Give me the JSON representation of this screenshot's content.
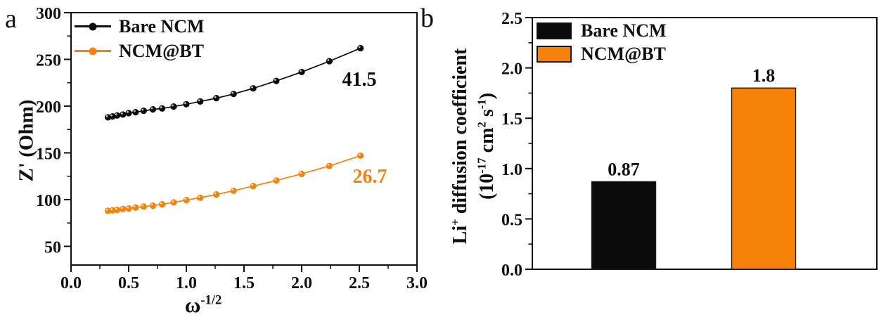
{
  "figure": {
    "panel_a_letter": "a",
    "panel_b_letter": "b"
  },
  "chart_data": [
    {
      "type": "line",
      "panel": "a",
      "title": "",
      "ylabel": "Z' (Ohm)",
      "xlabel_segments": [
        {
          "t": "ω"
        },
        {
          "t": "-1/2",
          "sup": true
        }
      ],
      "xlim": [
        0,
        3
      ],
      "ylim": [
        30,
        300
      ],
      "grid": false,
      "legend_position": "top-left",
      "x_ticks": [
        0,
        0.5,
        1,
        1.5,
        2,
        2.5,
        3
      ],
      "x_tick_labels": [
        "0.0",
        "0.5",
        "1.0",
        "1.5",
        "2.0",
        "2.5",
        "3.0"
      ],
      "x_minor_ticks": [
        0.25,
        0.75,
        1.25,
        1.75,
        2.25,
        2.75
      ],
      "y_ticks": [
        50,
        100,
        150,
        200,
        250,
        300
      ],
      "y_tick_labels": [
        "50",
        "100",
        "150",
        "200",
        "250",
        "300"
      ],
      "y_minor_ticks": [
        75,
        125,
        175,
        225,
        275
      ],
      "x": [
        0.32,
        0.36,
        0.4,
        0.45,
        0.5,
        0.56,
        0.63,
        0.71,
        0.79,
        0.89,
        1.0,
        1.12,
        1.26,
        1.41,
        1.58,
        1.78,
        2.0,
        2.24,
        2.51
      ],
      "series": [
        {
          "name": "Bare NCM",
          "color": "#0b0b0b",
          "marker": "circle",
          "slope_label": "41.5",
          "values": [
            188,
            189,
            190,
            191,
            192.5,
            193.5,
            195,
            196.5,
            197.5,
            199.5,
            202,
            205,
            208.5,
            213,
            219,
            227,
            236.5,
            248,
            262
          ]
        },
        {
          "name": "NCM@BT",
          "color": "#F7820A",
          "marker": "circle",
          "slope_label": "26.7",
          "values": [
            88,
            88.5,
            89,
            90,
            90.5,
            91.5,
            92.5,
            93.5,
            95,
            97,
            99.5,
            102,
            105.5,
            109.5,
            114.5,
            120.5,
            127.5,
            136,
            147
          ]
        }
      ]
    },
    {
      "type": "bar",
      "panel": "b",
      "title": "",
      "categories": [
        "Bare NCM",
        "NCM@BT"
      ],
      "values": [
        0.87,
        1.8
      ],
      "bar_labels": [
        "0.87",
        "1.8"
      ],
      "bar_colors": [
        "#0b0b0b",
        "#F7820A"
      ],
      "ylabel_line1_segments": [
        {
          "t": "Li"
        },
        {
          "t": "+",
          "sup": true
        },
        {
          "t": " diffusion coefficient"
        }
      ],
      "ylabel_line2_segments": [
        {
          "t": "(10"
        },
        {
          "t": "-17",
          "sup": true
        },
        {
          "t": " cm"
        },
        {
          "t": "2",
          "sup": true
        },
        {
          "t": " s"
        },
        {
          "t": "-1",
          "sup": true
        },
        {
          "t": ")"
        }
      ],
      "ylim": [
        0,
        2.5
      ],
      "grid": false,
      "legend_position": "top-left",
      "y_ticks": [
        0,
        0.5,
        1,
        1.5,
        2,
        2.5
      ],
      "y_tick_labels": [
        "0.0",
        "0.5",
        "1.0",
        "1.5",
        "2.0",
        "2.5"
      ],
      "y_minor_ticks": [
        0.25,
        0.75,
        1.25,
        1.75,
        2.25
      ]
    }
  ]
}
